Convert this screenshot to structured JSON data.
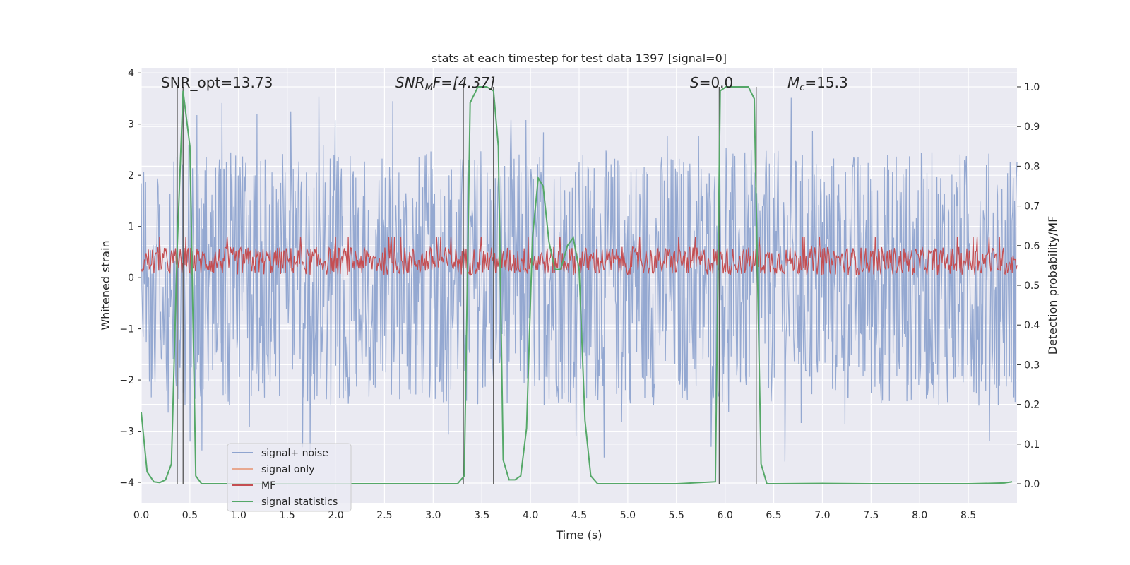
{
  "chart_data": {
    "type": "line",
    "title": "stats at each timestep for test data 1397 [signal=0]",
    "xlabel": "Time (s)",
    "ylabel": "Whitened strain",
    "y2label": "Detection probability/MF",
    "xlim": [
      0.0,
      9.0
    ],
    "ylim": [
      -4.4,
      4.1
    ],
    "y2lim": [
      -0.048,
      1.048
    ],
    "xticks": [
      "0.0",
      "0.5",
      "1.0",
      "1.5",
      "2.0",
      "2.5",
      "3.0",
      "3.5",
      "4.0",
      "4.5",
      "5.0",
      "5.5",
      "6.0",
      "6.5",
      "7.0",
      "7.5",
      "8.0",
      "8.5"
    ],
    "yticks": [
      "4",
      "3",
      "2",
      "1",
      "0",
      "−1",
      "−2",
      "−3",
      "−4"
    ],
    "y2ticks": [
      "1.0",
      "0.9",
      "0.8",
      "0.7",
      "0.6",
      "0.5",
      "0.4",
      "0.3",
      "0.2",
      "0.1",
      "0.0"
    ],
    "annotations": {
      "snr_opt": "SNR_opt=13.73",
      "snr_mf_main": "SNR",
      "snr_mf_sub": "M",
      "snr_mf_rest": "F=[4.37]",
      "s_main": "S",
      "s_rest": "=0.0",
      "mc_main": "M",
      "mc_sub": "c",
      "mc_rest": "=15.3"
    },
    "legend": {
      "position": "lower-left",
      "entries": [
        {
          "label": "signal+ noise",
          "color": "#8fa4cf"
        },
        {
          "label": "signal only",
          "color": "#e8a890"
        },
        {
          "label": "MF",
          "color": "#c44e52"
        },
        {
          "label": "signal statistics",
          "color": "#55a868"
        }
      ]
    },
    "series": [
      {
        "name": "signal+ noise",
        "axis": "left",
        "style": "dense noise trace, amplitude approx. ±2.5 with peaks to ±3.7",
        "envelope": [
          -2.5,
          2.5
        ]
      },
      {
        "name": "MF",
        "axis": "left",
        "style": "noisy trace around 0.3",
        "envelope": [
          0.0,
          0.8
        ]
      },
      {
        "name": "signal statistics",
        "axis": "right",
        "x": [
          0.0,
          0.06,
          0.13,
          0.19,
          0.25,
          0.31,
          0.37,
          0.43,
          0.5,
          0.56,
          0.62,
          0.75,
          1.0,
          2.0,
          3.0,
          3.25,
          3.32,
          3.38,
          3.46,
          3.55,
          3.62,
          3.67,
          3.72,
          3.78,
          3.84,
          3.9,
          3.96,
          4.02,
          4.08,
          4.13,
          4.19,
          4.25,
          4.31,
          4.38,
          4.44,
          4.5,
          4.56,
          4.62,
          4.69,
          4.75,
          4.81,
          4.87,
          5.0,
          5.5,
          5.9,
          5.95,
          6.01,
          6.1,
          6.24,
          6.3,
          6.37,
          6.43,
          6.5,
          7.0,
          7.5,
          8.0,
          8.5,
          8.87,
          8.95
        ],
        "y": [
          0.18,
          0.03,
          0.005,
          0.003,
          0.01,
          0.05,
          0.6,
          0.99,
          0.85,
          0.02,
          0.0,
          0.0,
          0.0,
          0.0,
          0.0,
          0.0,
          0.02,
          0.96,
          1.0,
          1.0,
          0.99,
          0.85,
          0.06,
          0.01,
          0.01,
          0.02,
          0.14,
          0.62,
          0.77,
          0.75,
          0.61,
          0.54,
          0.54,
          0.6,
          0.62,
          0.54,
          0.16,
          0.02,
          0.0,
          0.0,
          0.0,
          0.0,
          0.0,
          0.0,
          0.005,
          0.99,
          1.0,
          1.0,
          1.0,
          0.97,
          0.05,
          0.0,
          0.0,
          0.001,
          0.0,
          0.0,
          0.0,
          0.002,
          0.005
        ]
      }
    ],
    "vertical_markers_s": [
      0.37,
      0.43,
      3.31,
      3.62,
      5.94,
      6.32
    ]
  }
}
